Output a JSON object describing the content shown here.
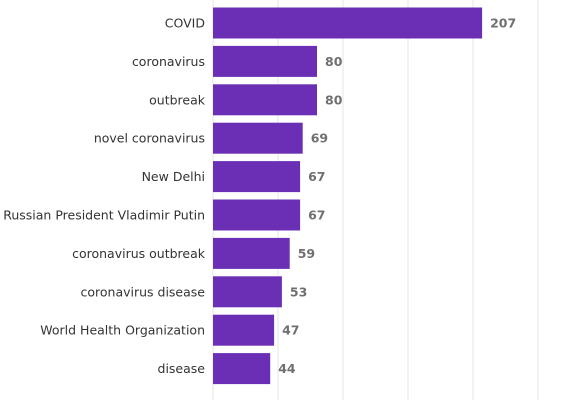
{
  "chart_data": {
    "type": "bar",
    "orientation": "horizontal",
    "categories": [
      "COVID",
      "coronavirus",
      "outbreak",
      "novel coronavirus",
      "New Delhi",
      "Russian President Vladimir Putin",
      "coronavirus outbreak",
      "coronavirus disease",
      "World Health Organization",
      "disease"
    ],
    "values": [
      207,
      80,
      80,
      69,
      67,
      67,
      59,
      53,
      47,
      44
    ],
    "value_labels": [
      "207",
      "80",
      "80",
      "69",
      "67",
      "67",
      "59",
      "53",
      "47",
      "44"
    ],
    "title": "",
    "xlabel": "",
    "ylabel": "",
    "xlim": [
      0,
      250
    ],
    "grid": true,
    "legend": "none",
    "bar_color": "#6a2fb5"
  }
}
